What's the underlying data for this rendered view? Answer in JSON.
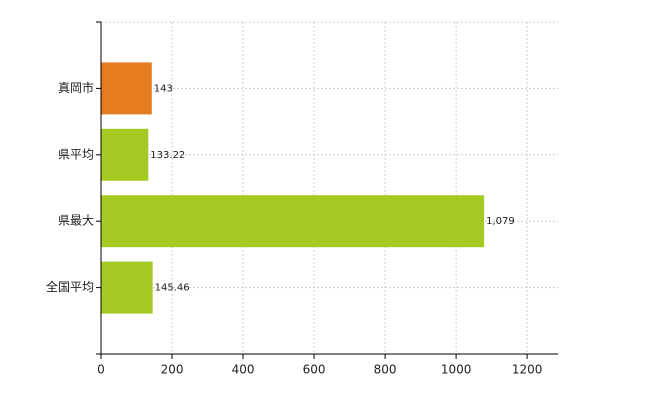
{
  "chart_data": {
    "type": "barh",
    "categories": [
      "真岡市",
      "県平均",
      "県最大",
      "全国平均"
    ],
    "values": [
      143,
      133.22,
      1079,
      145.46
    ],
    "value_labels": [
      "143",
      "133.22",
      "1,079",
      "145.46"
    ],
    "colors": [
      "#e47d1f",
      "#a6ca24",
      "#a6ca24",
      "#a6ca24"
    ],
    "xlim": [
      0,
      1287
    ],
    "xticks": [
      0,
      200,
      400,
      600,
      800,
      1000,
      1200
    ],
    "grid": true
  }
}
